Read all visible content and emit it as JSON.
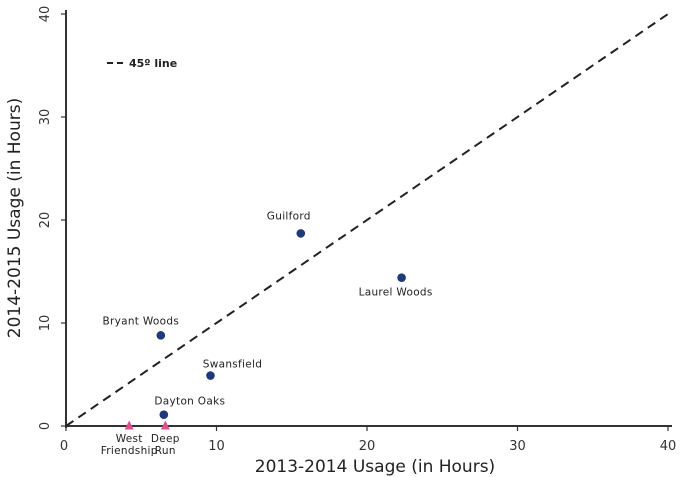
{
  "chart_data": {
    "type": "scatter",
    "title": "",
    "xlabel": "2013-2014 Usage (in Hours)",
    "ylabel": "2014-2015 Usage (in Hours)",
    "xlim": [
      0,
      40
    ],
    "ylim": [
      0,
      40
    ],
    "xticks": [
      "0",
      "10",
      "20",
      "30",
      "40"
    ],
    "yticks": [
      "0",
      "10",
      "20",
      "30",
      "40"
    ],
    "grid": false,
    "legend": {
      "label": "45º line",
      "placement": "top-left"
    },
    "reference_line": {
      "label": "45º line",
      "from": [
        0,
        0
      ],
      "to": [
        40,
        40
      ],
      "color": "#222222"
    },
    "points": [
      {
        "label": "Guilford",
        "x": 15.6,
        "y": 18.7,
        "color": "#1f3a7a",
        "marker": "circle"
      },
      {
        "label": "Laurel Woods",
        "x": 22.3,
        "y": 14.4,
        "color": "#1f3a7a",
        "marker": "circle"
      },
      {
        "label": "Bryant Woods",
        "x": 6.3,
        "y": 8.8,
        "color": "#1f3a7a",
        "marker": "circle"
      },
      {
        "label": "Swansfield",
        "x": 9.6,
        "y": 4.9,
        "color": "#1f3a7a",
        "marker": "circle"
      },
      {
        "label": "Dayton Oaks",
        "x": 6.5,
        "y": 1.1,
        "color": "#1f3a7a",
        "marker": "circle"
      },
      {
        "label": "West Friendship",
        "label_lines": [
          "West",
          "Friendship"
        ],
        "x": 4.2,
        "y": 0.0,
        "color": "#e0508c",
        "marker": "triangle"
      },
      {
        "label": "Deep Run",
        "label_lines": [
          "Deep",
          "Run"
        ],
        "x": 6.6,
        "y": 0.0,
        "color": "#e0508c",
        "marker": "triangle"
      }
    ]
  }
}
